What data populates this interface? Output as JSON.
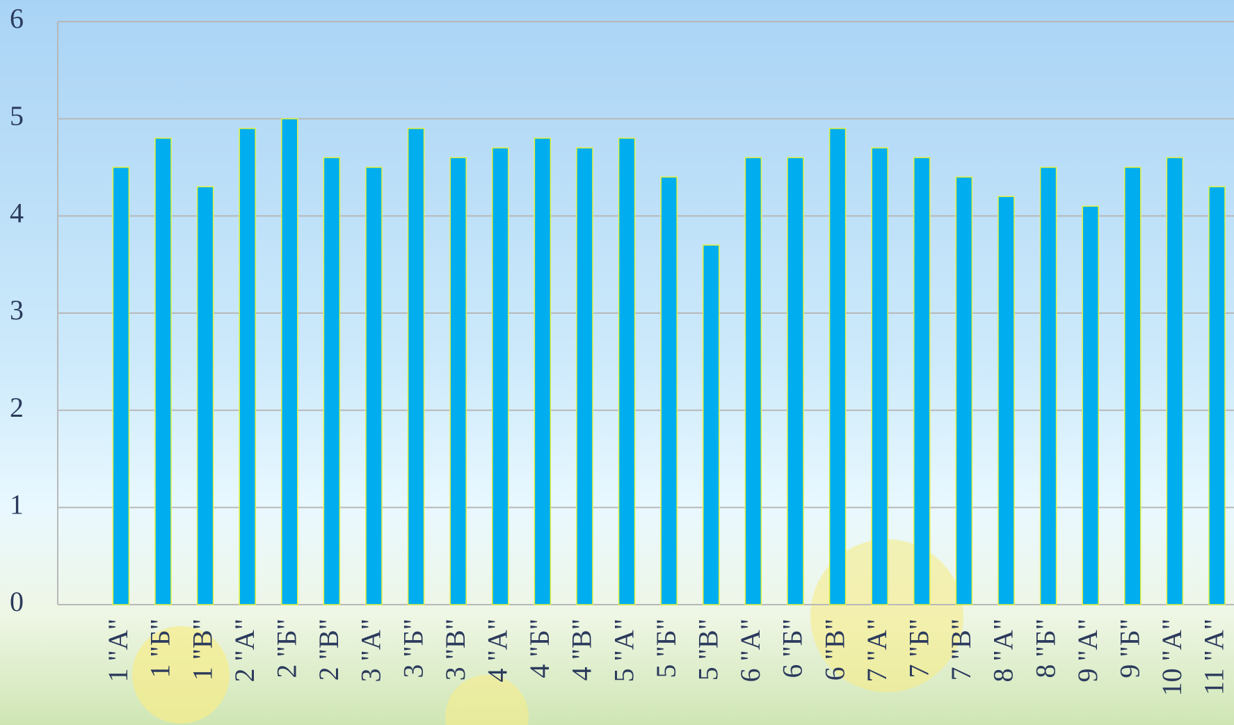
{
  "chart_data": {
    "type": "bar",
    "categories": [
      "1 \"А\"",
      "1 \"Б\"",
      "1 \"В\"",
      "2 \"А\"",
      "2 \"Б\"",
      "2 \"В\"",
      "3 \"А\"",
      "3 \"Б\"",
      "3 \"В\"",
      "4 \"А\"",
      "4 \"Б\"",
      "4 \"В\"",
      "5 \"А\"",
      "5 \"Б\"",
      "5 \"В\"",
      "6 \"А\"",
      "6 \"Б\"",
      "6 \"В\"",
      "7 \"А\"",
      "7 \"Б\"",
      "7 \"В\"",
      "8 \"А\"",
      "8 \"Б\"",
      "9 \"А\"",
      "9 \"Б\"",
      "10 \"А\"",
      "11 \"А\""
    ],
    "values": [
      4.5,
      4.8,
      4.3,
      4.9,
      5.0,
      4.6,
      4.5,
      4.9,
      4.6,
      4.7,
      4.8,
      4.7,
      4.8,
      4.4,
      3.7,
      4.6,
      4.6,
      4.9,
      4.7,
      4.6,
      4.4,
      4.2,
      4.5,
      4.1,
      4.5,
      4.6,
      4.3
    ],
    "color": "#00aeef",
    "ylim": [
      0,
      6
    ],
    "yticks": [
      0,
      1,
      2,
      3,
      4,
      5,
      6
    ],
    "grid": true
  }
}
